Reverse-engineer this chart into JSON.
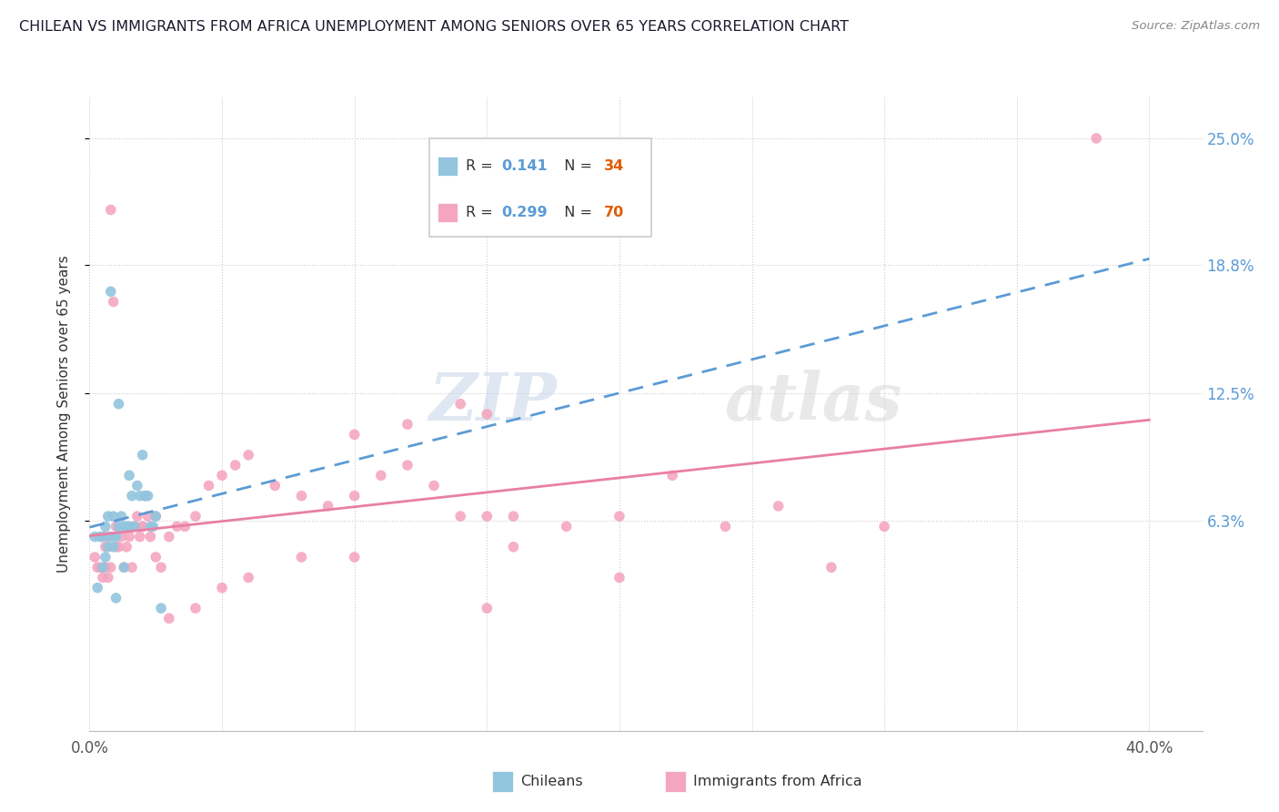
{
  "title": "CHILEAN VS IMMIGRANTS FROM AFRICA UNEMPLOYMENT AMONG SENIORS OVER 65 YEARS CORRELATION CHART",
  "source": "Source: ZipAtlas.com",
  "xlabel_chileans": "Chileans",
  "xlabel_africa": "Immigrants from Africa",
  "ylabel": "Unemployment Among Seniors over 65 years",
  "xlim": [
    0.0,
    0.42
  ],
  "ylim": [
    -0.04,
    0.27
  ],
  "ytick_positions": [
    0.063,
    0.125,
    0.188,
    0.25
  ],
  "ytick_labels": [
    "6.3%",
    "12.5%",
    "18.8%",
    "25.0%"
  ],
  "chilean_color": "#92c5de",
  "africa_color": "#f4a6c0",
  "chilean_line_color": "#5b9bd5",
  "africa_line_color": "#e87fa5",
  "R_chilean": 0.141,
  "N_chilean": 34,
  "R_africa": 0.299,
  "N_africa": 70,
  "watermark_zip": "ZIP",
  "watermark_atlas": "atlas",
  "chilean_x": [
    0.002,
    0.003,
    0.004,
    0.005,
    0.005,
    0.006,
    0.006,
    0.007,
    0.007,
    0.008,
    0.008,
    0.009,
    0.009,
    0.01,
    0.01,
    0.011,
    0.011,
    0.012,
    0.013,
    0.013,
    0.014,
    0.015,
    0.015,
    0.016,
    0.017,
    0.018,
    0.019,
    0.02,
    0.021,
    0.022,
    0.023,
    0.024,
    0.025,
    0.027
  ],
  "chilean_y": [
    0.055,
    0.03,
    0.055,
    0.04,
    0.055,
    0.045,
    0.06,
    0.05,
    0.065,
    0.055,
    0.175,
    0.065,
    0.05,
    0.055,
    0.025,
    0.12,
    0.06,
    0.065,
    0.06,
    0.04,
    0.06,
    0.06,
    0.085,
    0.075,
    0.06,
    0.08,
    0.075,
    0.095,
    0.075,
    0.075,
    0.06,
    0.06,
    0.065,
    0.02
  ],
  "africa_x": [
    0.002,
    0.003,
    0.004,
    0.005,
    0.005,
    0.006,
    0.006,
    0.007,
    0.007,
    0.008,
    0.008,
    0.009,
    0.01,
    0.01,
    0.011,
    0.012,
    0.013,
    0.014,
    0.015,
    0.016,
    0.017,
    0.018,
    0.019,
    0.02,
    0.021,
    0.022,
    0.023,
    0.025,
    0.027,
    0.03,
    0.033,
    0.036,
    0.04,
    0.045,
    0.05,
    0.055,
    0.06,
    0.07,
    0.08,
    0.09,
    0.1,
    0.11,
    0.12,
    0.13,
    0.14,
    0.15,
    0.16,
    0.18,
    0.2,
    0.22,
    0.24,
    0.26,
    0.28,
    0.3,
    0.1,
    0.12,
    0.14,
    0.16,
    0.05,
    0.06,
    0.08,
    0.1,
    0.15,
    0.2,
    0.02,
    0.025,
    0.03,
    0.04,
    0.38,
    0.15
  ],
  "africa_y": [
    0.045,
    0.04,
    0.04,
    0.035,
    0.055,
    0.04,
    0.05,
    0.035,
    0.055,
    0.04,
    0.215,
    0.17,
    0.06,
    0.05,
    0.05,
    0.055,
    0.04,
    0.05,
    0.055,
    0.04,
    0.06,
    0.065,
    0.055,
    0.06,
    0.075,
    0.065,
    0.055,
    0.065,
    0.04,
    0.055,
    0.06,
    0.06,
    0.065,
    0.08,
    0.085,
    0.09,
    0.095,
    0.08,
    0.075,
    0.07,
    0.075,
    0.085,
    0.09,
    0.08,
    0.12,
    0.065,
    0.05,
    0.06,
    0.065,
    0.085,
    0.06,
    0.07,
    0.04,
    0.06,
    0.105,
    0.11,
    0.065,
    0.065,
    0.03,
    0.035,
    0.045,
    0.045,
    0.02,
    0.035,
    0.06,
    0.045,
    0.015,
    0.02,
    0.25,
    0.115
  ]
}
